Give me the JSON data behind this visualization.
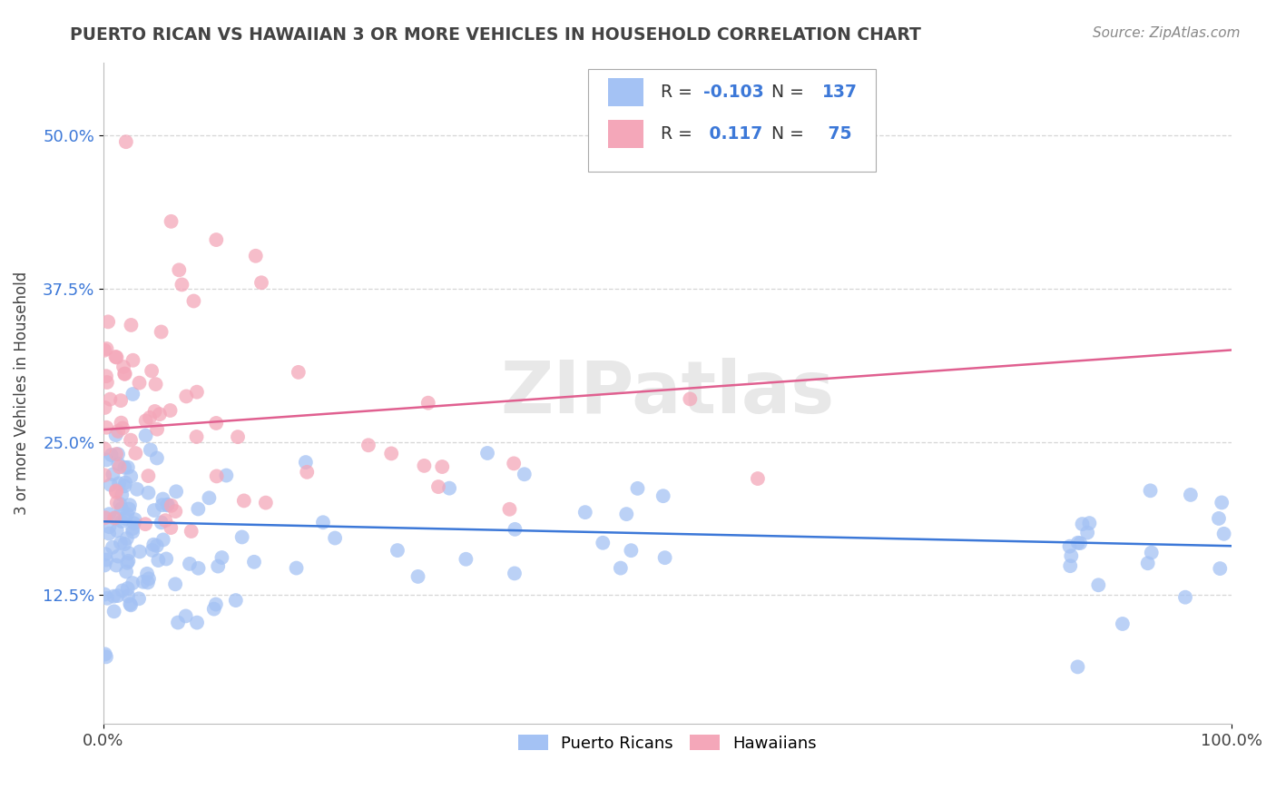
{
  "title": "PUERTO RICAN VS HAWAIIAN 3 OR MORE VEHICLES IN HOUSEHOLD CORRELATION CHART",
  "source": "Source: ZipAtlas.com",
  "ylabel": "3 or more Vehicles in Household",
  "xlim": [
    0.0,
    1.0
  ],
  "ylim": [
    0.02,
    0.56
  ],
  "yticks": [
    0.125,
    0.25,
    0.375,
    0.5
  ],
  "ytick_labels": [
    "12.5%",
    "25.0%",
    "37.5%",
    "50.0%"
  ],
  "xticks": [
    0.0,
    1.0
  ],
  "xtick_labels": [
    "0.0%",
    "100.0%"
  ],
  "blue_color": "#a4c2f4",
  "pink_color": "#f4a7b9",
  "blue_line_color": "#3c78d8",
  "pink_line_color": "#e06090",
  "R_blue": -0.103,
  "N_blue": 137,
  "R_pink": 0.117,
  "N_pink": 75,
  "watermark": "ZIPatlas",
  "legend_label_blue": "Puerto Ricans",
  "legend_label_pink": "Hawaiians",
  "background_color": "#ffffff",
  "grid_color": "#cccccc",
  "title_color": "#434343",
  "label_color": "#434343",
  "tick_color_blue": "#3c78d8",
  "source_color": "#888888"
}
